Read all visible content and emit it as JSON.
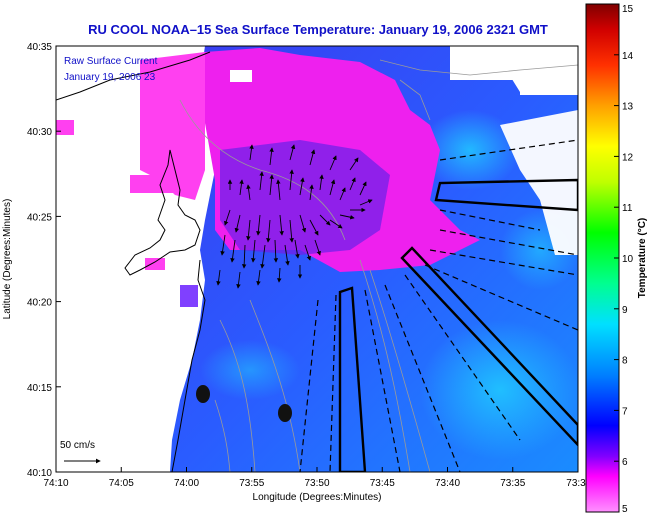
{
  "title": "RU COOL  NOAA–15  Sea Surface Temperature:  January 19, 2006 2321 GMT",
  "legend": {
    "line1": "Raw Surface Current",
    "line2": "January 19, 2006 23"
  },
  "axes": {
    "xlabel": "Longitude (Degrees:Minutes)",
    "ylabel": "Latitude (Degrees:Minutes)",
    "x_ticks": [
      "74:10",
      "74:05",
      "74:00",
      "73:55",
      "73:50",
      "73:45",
      "73:40",
      "73:35",
      "73:3"
    ],
    "y_ticks": [
      "40:35",
      "40:30",
      "40:25",
      "40:20",
      "40:15",
      "40:10"
    ]
  },
  "colorbar": {
    "label": "Temperature (°C)",
    "ticks": [
      "15",
      "14",
      "13",
      "12",
      "11",
      "10",
      "9",
      "8",
      "7",
      "6",
      "5"
    ],
    "min": 5,
    "max": 15
  },
  "scale_arrow": {
    "label": "50 cm/s"
  },
  "colors": {
    "title": "#1010c8",
    "warm_water": "#ff00ff",
    "mid_water": "#2060ff",
    "cool_water": "#00c0ff",
    "land": "#ffffff"
  }
}
